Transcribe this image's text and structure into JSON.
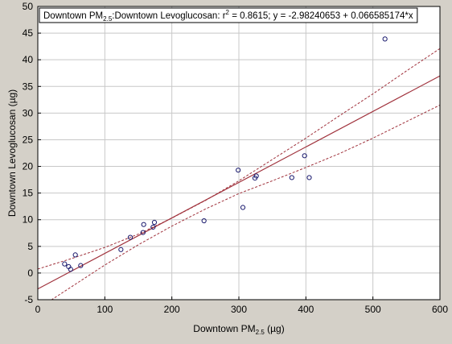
{
  "chart_data": {
    "type": "scatter",
    "title": {
      "prefix": "Downtown PM",
      "prefix_sub": "2.5",
      "middle": ":Downtown Levoglucosan:  r",
      "sup": "2",
      "suffix": " = 0.8615;  y = -2.98240653 + 0.066585174*x"
    },
    "xlabel": {
      "main": "Downtown PM",
      "sub": "2.5",
      "unit": "  (µg)"
    },
    "ylabel": "Downtown Levoglucosan (µg)",
    "xlim": [
      0,
      600
    ],
    "ylim": [
      -5,
      50
    ],
    "xticks": [
      0,
      100,
      200,
      300,
      400,
      500,
      600
    ],
    "yticks": [
      -5,
      0,
      5,
      10,
      15,
      20,
      25,
      30,
      35,
      40,
      45,
      50
    ],
    "grid": true,
    "regression": {
      "intercept": -2.98240653,
      "slope": 0.066585174,
      "r2": 0.8615
    },
    "confidence_band": {
      "upper": [
        [
          0,
          0.75
        ],
        [
          50,
          2.7
        ],
        [
          100,
          4.8
        ],
        [
          150,
          7.3
        ],
        [
          200,
          10.3
        ],
        [
          250,
          13.6
        ],
        [
          300,
          17.3
        ],
        [
          350,
          21.3
        ],
        [
          400,
          25.3
        ],
        [
          450,
          29.5
        ],
        [
          500,
          33.6
        ],
        [
          550,
          37.9
        ],
        [
          600,
          42.1
        ]
      ],
      "lower": [
        [
          0,
          -6.7
        ],
        [
          50,
          -2.6
        ],
        [
          100,
          1.5
        ],
        [
          150,
          5.3
        ],
        [
          200,
          8.8
        ],
        [
          250,
          12.0
        ],
        [
          300,
          14.9
        ],
        [
          350,
          17.3
        ],
        [
          400,
          19.8
        ],
        [
          450,
          22.4
        ],
        [
          500,
          25.3
        ],
        [
          550,
          28.4
        ],
        [
          600,
          31.5
        ]
      ]
    },
    "points": [
      {
        "x": 40,
        "y": 1.7
      },
      {
        "x": 46,
        "y": 1.2
      },
      {
        "x": 49,
        "y": 0.7
      },
      {
        "x": 56,
        "y": 3.4
      },
      {
        "x": 64,
        "y": 1.4
      },
      {
        "x": 124,
        "y": 4.4
      },
      {
        "x": 138,
        "y": 6.7
      },
      {
        "x": 157,
        "y": 7.6
      },
      {
        "x": 158,
        "y": 9.1
      },
      {
        "x": 172,
        "y": 8.6
      },
      {
        "x": 174,
        "y": 9.5
      },
      {
        "x": 248,
        "y": 9.8
      },
      {
        "x": 299,
        "y": 19.3
      },
      {
        "x": 306,
        "y": 12.3
      },
      {
        "x": 324,
        "y": 17.8
      },
      {
        "x": 326,
        "y": 18.2
      },
      {
        "x": 379,
        "y": 17.9
      },
      {
        "x": 398,
        "y": 22.0
      },
      {
        "x": 405,
        "y": 17.9
      },
      {
        "x": 518,
        "y": 43.9
      }
    ],
    "colors": {
      "background": "#d4d0c8",
      "plot_background": "#ffffff",
      "grid": "#c8c8c8",
      "regression_line": "#a0323c",
      "band_line": "#a0323c",
      "marker": "#1a1a6e"
    }
  }
}
